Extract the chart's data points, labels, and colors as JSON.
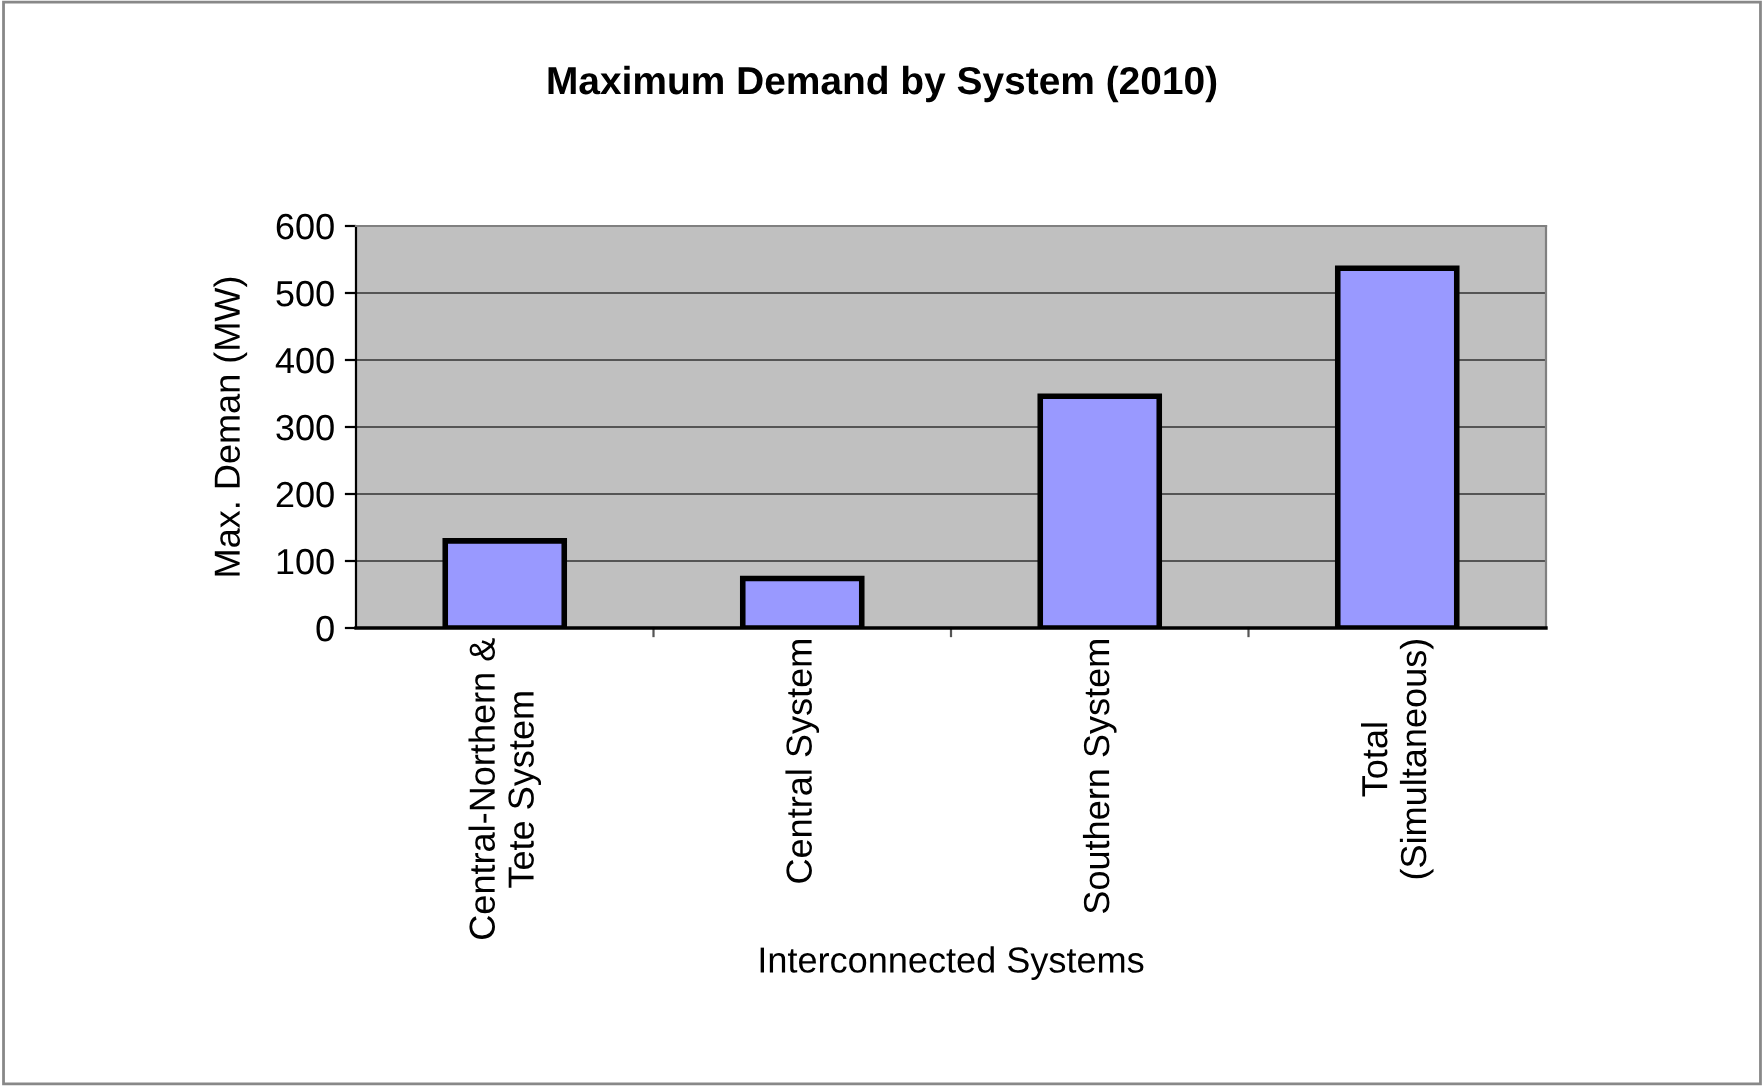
{
  "chart_data": {
    "type": "bar",
    "title": "Maximum Demand by System (2010)",
    "xlabel": "Interconnected Systems",
    "ylabel": "Max. Deman (MW)",
    "categories": [
      "Central-Northern &\nTete System",
      "Central System",
      "Southern System",
      "Total\n(Simultaneous)"
    ],
    "values": [
      130,
      74,
      346,
      537
    ],
    "color": "#9999ff",
    "ylim": [
      0,
      600
    ],
    "yticks": [
      0,
      100,
      200,
      300,
      400,
      500,
      600
    ],
    "grid": "y",
    "legend": false
  }
}
